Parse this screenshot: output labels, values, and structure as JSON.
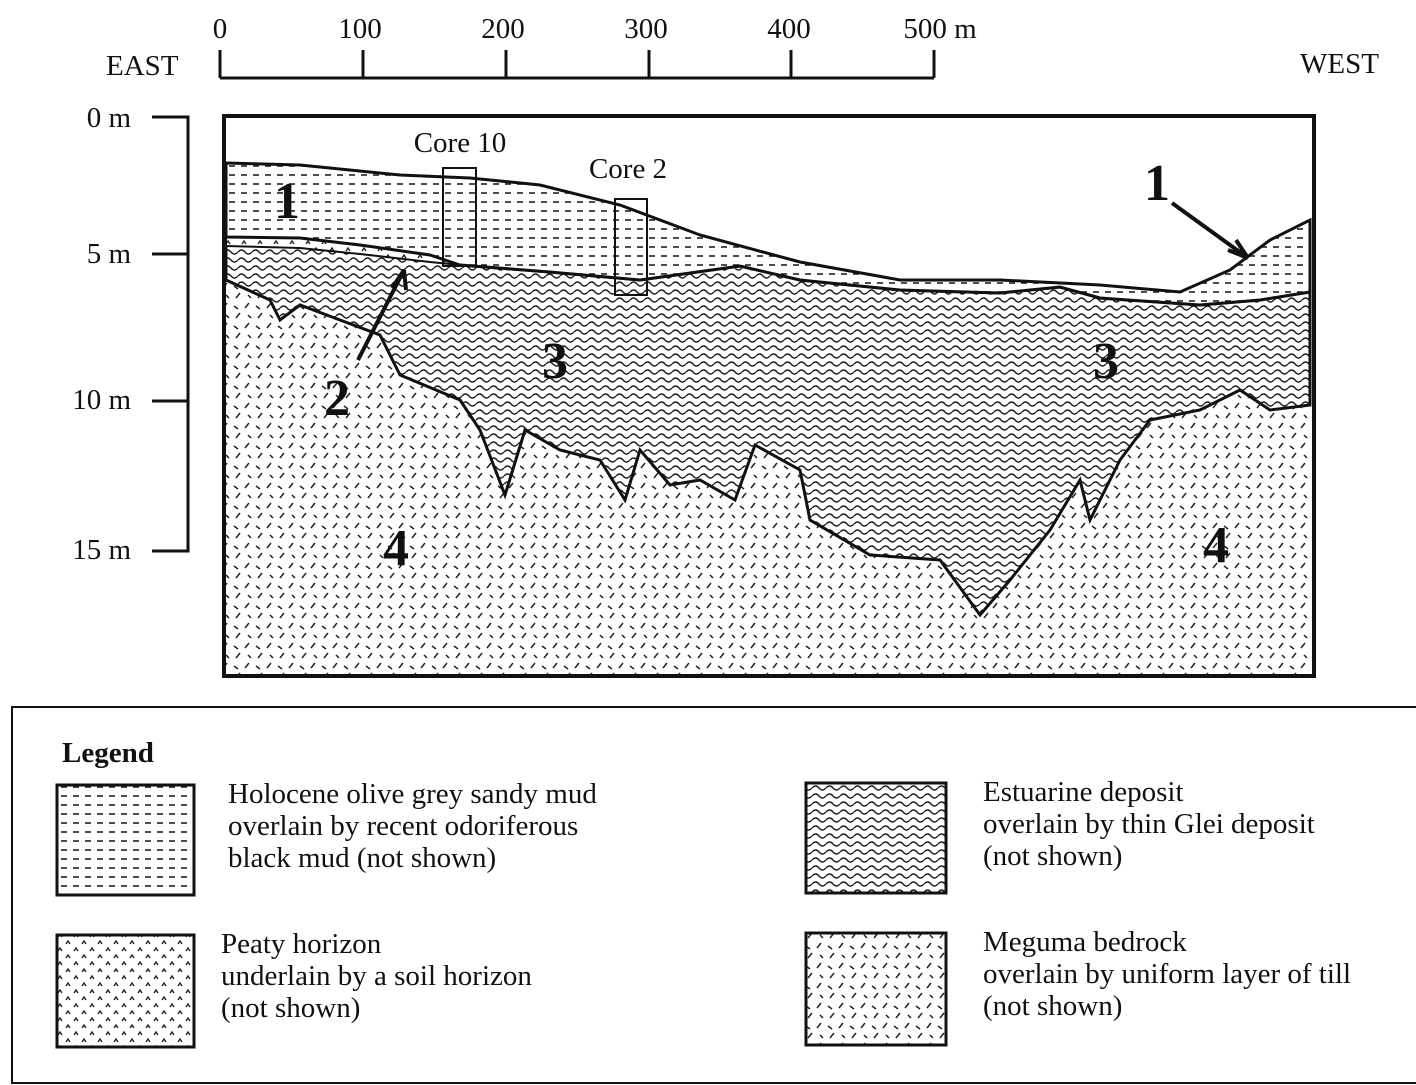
{
  "scale": {
    "labels": [
      "0",
      "100",
      "200",
      "300",
      "400",
      "500 m"
    ]
  },
  "directions": {
    "left": "EAST",
    "right": "WEST"
  },
  "depth": {
    "labels": [
      "0 m",
      "5 m",
      "10 m",
      "15 m"
    ]
  },
  "cores": [
    "Core 10",
    "Core 2"
  ],
  "layer_numbers": [
    "1",
    "1",
    "2",
    "3",
    "3",
    "4",
    "4"
  ],
  "legend": {
    "title": "Legend",
    "items": [
      {
        "lines": [
          "Holocene olive grey sandy mud",
          "overlain by recent odoriferous",
          "black mud (not shown)"
        ]
      },
      {
        "lines": [
          "Estuarine deposit",
          "overlain by thin Glei deposit",
          "(not shown)"
        ]
      },
      {
        "lines": [
          "Peaty horizon",
          "underlain by a soil horizon",
          "(not shown)"
        ]
      },
      {
        "lines": [
          "Meguma bedrock",
          "overlain by uniform layer of till",
          "(not shown)"
        ]
      }
    ]
  }
}
